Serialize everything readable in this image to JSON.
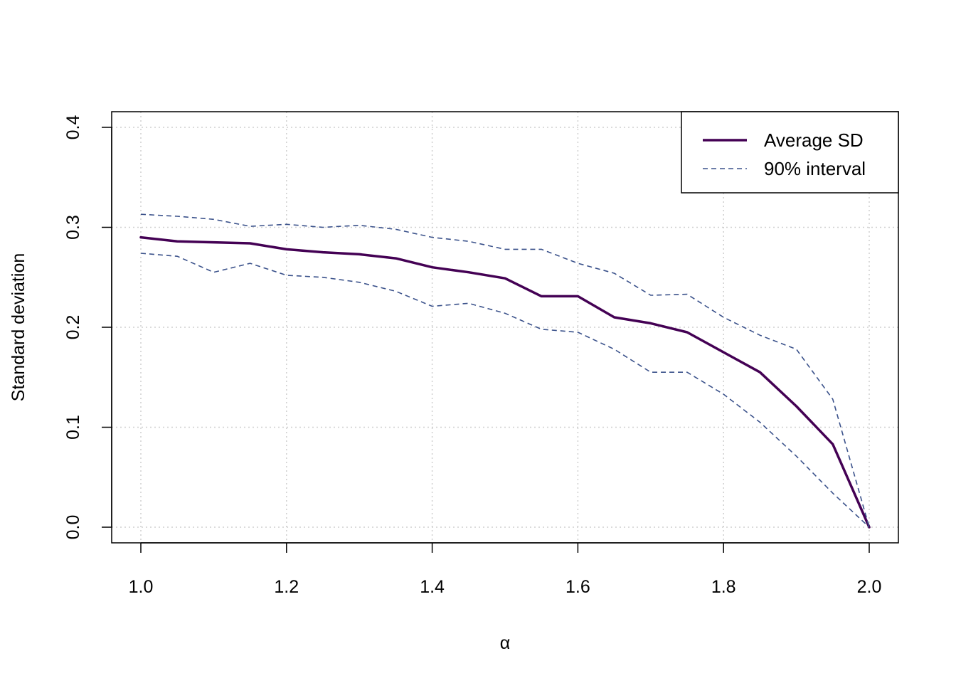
{
  "chart_data": {
    "type": "line",
    "title": "",
    "xlabel": "α",
    "ylabel": "Standard deviation",
    "xlim": [
      1.0,
      2.0
    ],
    "ylim": [
      0.0,
      0.4
    ],
    "x_ticks": [
      "1.0",
      "1.2",
      "1.4",
      "1.6",
      "1.8",
      "2.0"
    ],
    "y_ticks": [
      "0.0",
      "0.1",
      "0.2",
      "0.3",
      "0.4"
    ],
    "grid": true,
    "legend_position": "top-right",
    "x": [
      1.0,
      1.05,
      1.1,
      1.15,
      1.2,
      1.25,
      1.3,
      1.35,
      1.4,
      1.45,
      1.5,
      1.55,
      1.6,
      1.65,
      1.7,
      1.75,
      1.8,
      1.85,
      1.9,
      1.95,
      2.0
    ],
    "series": [
      {
        "name": "Average SD",
        "style": "solid",
        "color": "#440154",
        "values": [
          0.29,
          0.286,
          0.285,
          0.284,
          0.278,
          0.275,
          0.273,
          0.269,
          0.26,
          0.255,
          0.249,
          0.231,
          0.231,
          0.21,
          0.204,
          0.195,
          0.175,
          0.155,
          0.121,
          0.083,
          0.0
        ]
      },
      {
        "name": "90% interval",
        "style": "dashed",
        "color": "#3b528b",
        "values": [
          0.313,
          0.311,
          0.308,
          0.301,
          0.303,
          0.3,
          0.302,
          0.298,
          0.29,
          0.286,
          0.278,
          0.278,
          0.264,
          0.254,
          0.232,
          0.233,
          0.21,
          0.192,
          0.178,
          0.128,
          0.0
        ]
      },
      {
        "name": "",
        "style": "dashed",
        "color": "#3b528b",
        "values": [
          0.274,
          0.271,
          0.255,
          0.264,
          0.252,
          0.25,
          0.245,
          0.236,
          0.221,
          0.224,
          0.214,
          0.198,
          0.195,
          0.178,
          0.155,
          0.155,
          0.133,
          0.105,
          0.071,
          0.034,
          0.0
        ]
      }
    ]
  }
}
